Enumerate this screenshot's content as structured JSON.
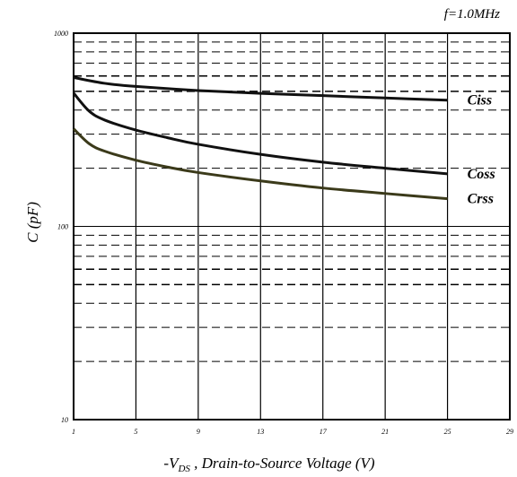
{
  "chart_data": {
    "type": "line",
    "condition": "f=1.0MHz",
    "xlabel": {
      "prefix": "-V",
      "sub": "DS",
      "rest": " , Drain-to-Source Voltage (V)"
    },
    "ylabel": "C (pF)",
    "xlim": [
      1,
      29
    ],
    "ylim": [
      10,
      1000
    ],
    "yscale": "log",
    "x_ticks": [
      "1",
      "5",
      "9",
      "13",
      "17",
      "21",
      "25",
      "29"
    ],
    "y_ticks": [
      "10",
      "100",
      "1000"
    ],
    "grid": true,
    "series": [
      {
        "name": "Ciss",
        "color": "#111111",
        "x": [
          1,
          3,
          5,
          9,
          13,
          17,
          21,
          25
        ],
        "y": [
          590,
          550,
          530,
          505,
          488,
          475,
          462,
          450
        ]
      },
      {
        "name": "Coss",
        "color": "#111111",
        "x": [
          1,
          2,
          3,
          5,
          7,
          9,
          13,
          17,
          21,
          25
        ],
        "y": [
          490,
          395,
          355,
          315,
          288,
          266,
          236,
          215,
          200,
          187
        ]
      },
      {
        "name": "Crss",
        "color": "#3b3a1a",
        "x": [
          1,
          2,
          3,
          5,
          7,
          9,
          13,
          17,
          21,
          25
        ],
        "y": [
          320,
          268,
          245,
          220,
          203,
          190,
          172,
          158,
          148,
          139
        ]
      }
    ]
  }
}
